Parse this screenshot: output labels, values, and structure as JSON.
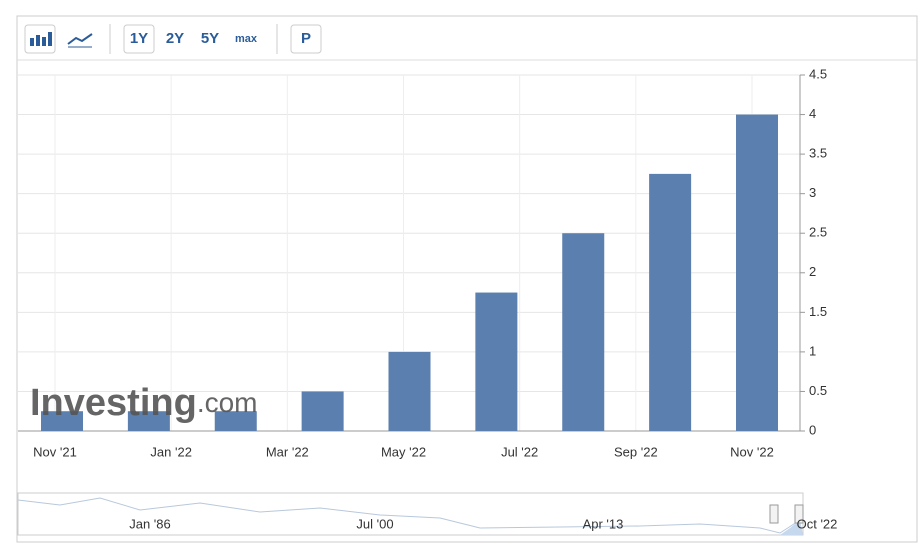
{
  "toolbar": {
    "ranges": [
      "1Y",
      "2Y",
      "5Y",
      "max"
    ],
    "extra": "P"
  },
  "logo": {
    "main": "Investing",
    "suffix": ".com"
  },
  "chart_data": {
    "type": "bar",
    "categories": [
      null,
      null,
      null,
      null,
      null,
      null,
      null,
      null,
      null
    ],
    "values": [
      0.25,
      0.25,
      0.25,
      0.5,
      1,
      1.75,
      2.5,
      3.25,
      4
    ],
    "color": "#5b7fae",
    "xticks": [
      "Nov '21",
      "Jan '22",
      "Mar '22",
      "May '22",
      "Jul '22",
      "Sep '22",
      "Nov '22"
    ],
    "ylim": [
      0,
      4.5
    ],
    "yticks": [
      0,
      0.5,
      1,
      1.5,
      2,
      2.5,
      3,
      3.5,
      4,
      4.5
    ],
    "grid": true
  },
  "navigator": {
    "labels": [
      "Jan '86",
      "Jul '00",
      "Apr '13",
      "Oct '22"
    ]
  }
}
